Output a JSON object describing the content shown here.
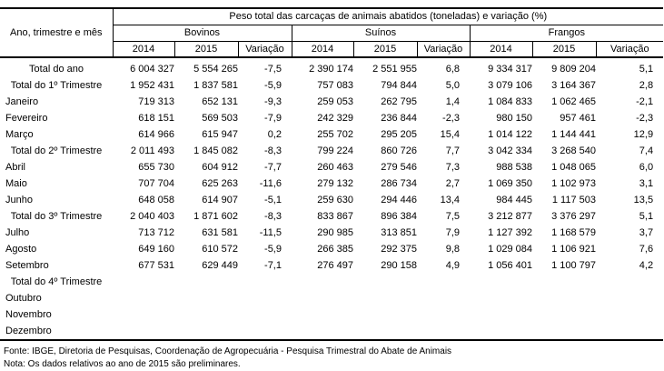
{
  "table": {
    "corner_label": "Ano, trimestre e mês",
    "title": "Peso total das carcaças de animais abatidos (toneladas) e variação (%)",
    "groups": [
      {
        "key": "bovinos",
        "label": "Bovinos"
      },
      {
        "key": "suinos",
        "label": "Suínos"
      },
      {
        "key": "frangos",
        "label": "Frangos"
      }
    ],
    "sub_headers": [
      "2014",
      "2015",
      "Variação"
    ],
    "rows": [
      {
        "label": "Total do ano",
        "type": "total",
        "values": [
          "6 004 327",
          "5 554 265",
          "-7,5",
          "2 390 174",
          "2 551 955",
          "6,8",
          "9 334 317",
          "9 809 204",
          "5,1"
        ]
      },
      {
        "label": "Total do 1º Trimestre",
        "type": "total",
        "values": [
          "1 952 431",
          "1 837 581",
          "-5,9",
          "757 083",
          "794 844",
          "5,0",
          "3 079 106",
          "3 164 367",
          "2,8"
        ]
      },
      {
        "label": "Janeiro",
        "type": "month",
        "values": [
          "719 313",
          "652 131",
          "-9,3",
          "259 053",
          "262 795",
          "1,4",
          "1 084 833",
          "1 062 465",
          "-2,1"
        ]
      },
      {
        "label": "Fevereiro",
        "type": "month",
        "values": [
          "618 151",
          "569 503",
          "-7,9",
          "242 329",
          "236 844",
          "-2,3",
          "980 150",
          "957 461",
          "-2,3"
        ]
      },
      {
        "label": "Março",
        "type": "month",
        "values": [
          "614 966",
          "615 947",
          "0,2",
          "255 702",
          "295 205",
          "15,4",
          "1 014 122",
          "1 144 441",
          "12,9"
        ]
      },
      {
        "label": "Total do 2º Trimestre",
        "type": "total",
        "values": [
          "2 011 493",
          "1 845 082",
          "-8,3",
          "799 224",
          "860 726",
          "7,7",
          "3 042 334",
          "3 268 540",
          "7,4"
        ]
      },
      {
        "label": "Abril",
        "type": "month",
        "values": [
          "655 730",
          "604 912",
          "-7,7",
          "260 463",
          "279 546",
          "7,3",
          "988 538",
          "1 048 065",
          "6,0"
        ]
      },
      {
        "label": "Maio",
        "type": "month",
        "values": [
          "707 704",
          "625 263",
          "-11,6",
          "279 132",
          "286 734",
          "2,7",
          "1 069 350",
          "1 102 973",
          "3,1"
        ]
      },
      {
        "label": "Junho",
        "type": "month",
        "values": [
          "648 058",
          "614 907",
          "-5,1",
          "259 630",
          "294 446",
          "13,4",
          "984 445",
          "1 117 503",
          "13,5"
        ]
      },
      {
        "label": "Total do 3º Trimestre",
        "type": "total",
        "values": [
          "2 040 403",
          "1 871 602",
          "-8,3",
          "833 867",
          "896 384",
          "7,5",
          "3 212 877",
          "3 376 297",
          "5,1"
        ]
      },
      {
        "label": "Julho",
        "type": "month",
        "values": [
          "713 712",
          "631 581",
          "-11,5",
          "290 985",
          "313 851",
          "7,9",
          "1 127 392",
          "1 168 579",
          "3,7"
        ]
      },
      {
        "label": "Agosto",
        "type": "month",
        "values": [
          "649 160",
          "610 572",
          "-5,9",
          "266 385",
          "292 375",
          "9,8",
          "1 029 084",
          "1 106 921",
          "7,6"
        ]
      },
      {
        "label": "Setembro",
        "type": "month",
        "values": [
          "677 531",
          "629 449",
          "-7,1",
          "276 497",
          "290 158",
          "4,9",
          "1 056 401",
          "1 100 797",
          "4,2"
        ]
      },
      {
        "label": "Total do 4º Trimestre",
        "type": "total",
        "values": [
          "",
          "",
          "",
          "",
          "",
          "",
          "",
          "",
          ""
        ]
      },
      {
        "label": "Outubro",
        "type": "month",
        "values": [
          "",
          "",
          "",
          "",
          "",
          "",
          "",
          "",
          ""
        ]
      },
      {
        "label": "Novembro",
        "type": "month",
        "values": [
          "",
          "",
          "",
          "",
          "",
          "",
          "",
          "",
          ""
        ]
      },
      {
        "label": "Dezembro",
        "type": "month",
        "values": [
          "",
          "",
          "",
          "",
          "",
          "",
          "",
          "",
          ""
        ]
      }
    ]
  },
  "footer": {
    "fonte": "Fonte: IBGE, Diretoria de Pesquisas, Coordenação de Agropecuária - Pesquisa Trimestral do Abate de Animais",
    "nota": "Nota: Os dados relativos ao ano de 2015 são preliminares."
  }
}
